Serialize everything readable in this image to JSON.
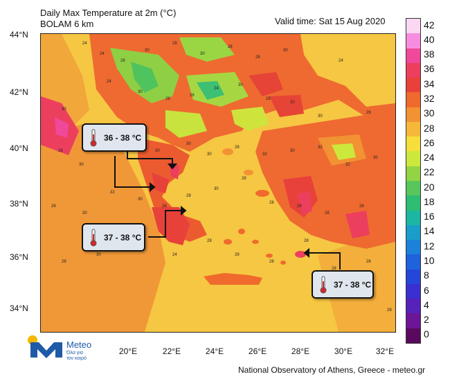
{
  "header": {
    "title_line1": "Daily Max Temperature at 2m (°C)",
    "title_line2": "BOLAM 6 km",
    "valid_time": "Valid time: Sat 15 Aug 2020"
  },
  "axes": {
    "lat_labels": [
      "44°N",
      "42°N",
      "40°N",
      "38°N",
      "36°N",
      "34°N"
    ],
    "lon_labels": [
      "20°E",
      "22°E",
      "24°E",
      "26°E",
      "28°E",
      "30°E",
      "32°E"
    ]
  },
  "colorbar": {
    "labels": [
      "42",
      "40",
      "38",
      "36",
      "34",
      "32",
      "30",
      "28",
      "26",
      "24",
      "22",
      "20",
      "18",
      "16",
      "14",
      "12",
      "10",
      "8",
      "6",
      "4",
      "2",
      "0"
    ],
    "colors": [
      "#fbd7f2",
      "#f78de0",
      "#f0489a",
      "#ec3f5e",
      "#e8413a",
      "#ef6a2c",
      "#f29233",
      "#f6b83a",
      "#f6df3a",
      "#cde83c",
      "#92d444",
      "#58c65a",
      "#2fbd73",
      "#1cb7a3",
      "#1a9ec9",
      "#1c82d9",
      "#1e62dc",
      "#2447d8",
      "#3a2fcf",
      "#5622b9",
      "#6c1596",
      "#5a0a5e"
    ]
  },
  "callouts": [
    {
      "label": "36 - 38 °C",
      "icon": "thermometer-icon"
    },
    {
      "label": "37 - 38 °C",
      "icon": "thermometer-icon"
    },
    {
      "label": "37 - 38 °C",
      "icon": "thermometer-icon"
    }
  ],
  "map_values": [
    "24",
    "24",
    "26",
    "30",
    "28",
    "30",
    "28",
    "28",
    "30",
    "24",
    "24",
    "30",
    "28",
    "26",
    "24",
    "30",
    "28",
    "32",
    "30",
    "28",
    "30",
    "28",
    "30",
    "26",
    "28",
    "30",
    "30",
    "30",
    "28",
    "32",
    "30",
    "32",
    "32",
    "30",
    "28",
    "30",
    "32",
    "30",
    "28",
    "28",
    "30",
    "28",
    "28",
    "26",
    "28",
    "28",
    "28",
    "30",
    "26",
    "24",
    "28",
    "28",
    "28",
    "28",
    "28",
    "26",
    "28"
  ],
  "branding": {
    "name": "Meteo",
    "tagline1": "Όλα για",
    "tagline2": "τον καιρό"
  },
  "footer": "National Observatory of Athens, Greece - meteo.gr"
}
